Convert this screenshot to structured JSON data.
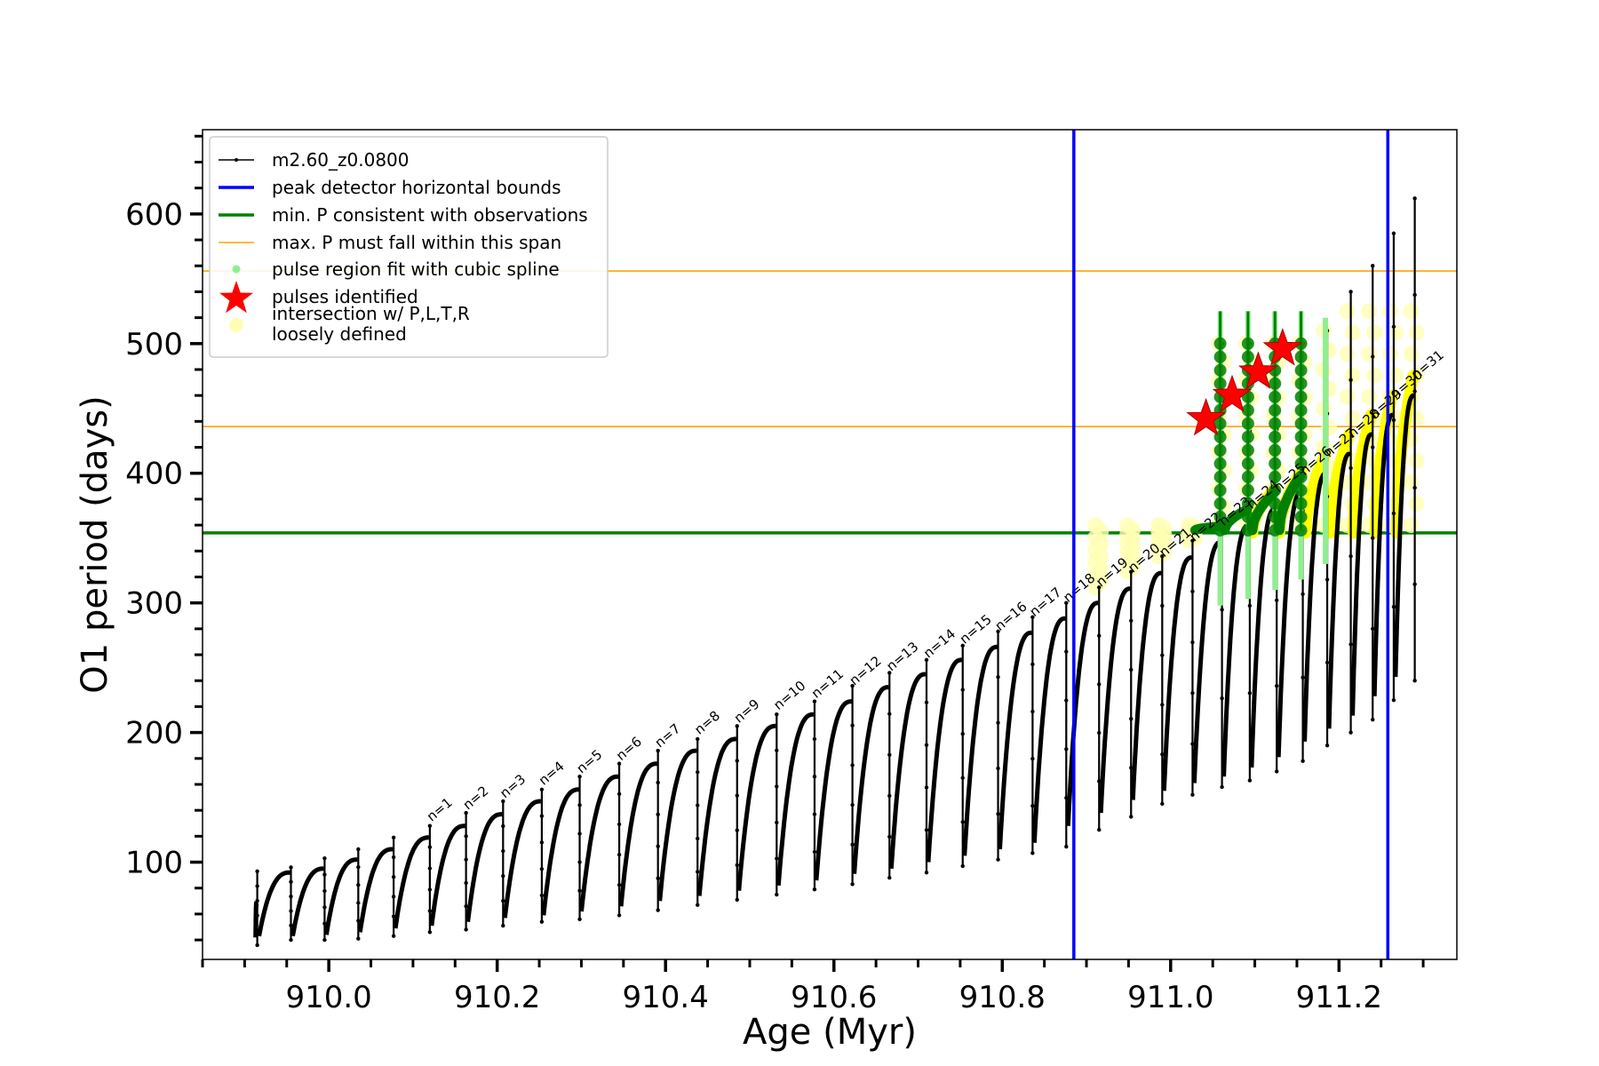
{
  "chart_data": {
    "type": "scatter",
    "xlabel": "Age (Myr)",
    "ylabel": "O1 period (days)",
    "xlim": [
      909.85,
      911.34
    ],
    "ylim": [
      25,
      665
    ],
    "xticks": [
      {
        "value": 910.0,
        "label": "910.0"
      },
      {
        "value": 910.2,
        "label": "910.2"
      },
      {
        "value": 910.4,
        "label": "910.4"
      },
      {
        "value": 910.6,
        "label": "910.6"
      },
      {
        "value": 910.8,
        "label": "910.8"
      },
      {
        "value": 911.0,
        "label": "911.0"
      },
      {
        "value": 911.2,
        "label": "911.2"
      }
    ],
    "yticks": [
      {
        "value": 100,
        "label": "100"
      },
      {
        "value": 200,
        "label": "200"
      },
      {
        "value": 300,
        "label": "300"
      },
      {
        "value": 400,
        "label": "400"
      },
      {
        "value": 500,
        "label": "500"
      },
      {
        "value": 600,
        "label": "600"
      }
    ],
    "legend": {
      "position": "upper-left",
      "entries": [
        {
          "label": "m2.60_z0.0800",
          "marker": "line-dot",
          "color": "#000000"
        },
        {
          "label": "peak detector horizontal bounds",
          "marker": "line",
          "color": "#0000ff"
        },
        {
          "label": "min. P consistent with observations",
          "marker": "line",
          "color": "#008000"
        },
        {
          "label": "max. P must fall within this span",
          "marker": "thin-line",
          "color": "#ffa500"
        },
        {
          "label": "pulse region fit with cubic spline",
          "marker": "dot",
          "color": "#90ee90"
        },
        {
          "label": "pulses identified",
          "marker": "star",
          "color": "#ff0000"
        },
        {
          "label": "intersection w/ P,L,T,R",
          "label2": "loosely defined",
          "marker": "circle",
          "color": "#ffffb3"
        }
      ]
    },
    "vlines": [
      {
        "x": 910.885,
        "color": "#0000ff"
      },
      {
        "x": 911.258,
        "color": "#0000ff"
      }
    ],
    "hlines": [
      {
        "y": 354,
        "color": "#008000"
      },
      {
        "y": 436,
        "color": "#ffa500"
      },
      {
        "y": 556,
        "color": "#ffa500"
      }
    ],
    "pulses": [
      {
        "n": 0,
        "x": 909.915,
        "min": 36,
        "max": 68,
        "peak": 93
      },
      {
        "n": 0,
        "x": 909.955,
        "min": 40,
        "max": 92,
        "peak": 96
      },
      {
        "n": 0,
        "x": 909.995,
        "min": 40,
        "max": 95,
        "peak": 103
      },
      {
        "n": 0,
        "x": 910.035,
        "min": 41,
        "max": 102,
        "peak": 110
      },
      {
        "n": 0,
        "x": 910.077,
        "min": 43,
        "max": 110,
        "peak": 119
      },
      {
        "n": 1,
        "x": 910.12,
        "min": 46,
        "max": 119,
        "peak": 128,
        "label": "n=1"
      },
      {
        "n": 2,
        "x": 910.163,
        "min": 48,
        "max": 128,
        "peak": 138,
        "label": "n=2"
      },
      {
        "n": 3,
        "x": 910.207,
        "min": 51,
        "max": 137,
        "peak": 147,
        "label": "n=3"
      },
      {
        "n": 4,
        "x": 910.253,
        "min": 54,
        "max": 147,
        "peak": 156,
        "label": "n=4"
      },
      {
        "n": 5,
        "x": 910.298,
        "min": 56,
        "max": 156,
        "peak": 166,
        "label": "n=5"
      },
      {
        "n": 6,
        "x": 910.345,
        "min": 59,
        "max": 166,
        "peak": 176,
        "label": "n=6"
      },
      {
        "n": 7,
        "x": 910.391,
        "min": 63,
        "max": 176,
        "peak": 186,
        "label": "n=7"
      },
      {
        "n": 8,
        "x": 910.438,
        "min": 67,
        "max": 186,
        "peak": 195,
        "label": "n=8"
      },
      {
        "n": 9,
        "x": 910.485,
        "min": 71,
        "max": 195,
        "peak": 205,
        "label": "n=9"
      },
      {
        "n": 10,
        "x": 910.532,
        "min": 75,
        "max": 205,
        "peak": 214,
        "label": "n=10"
      },
      {
        "n": 11,
        "x": 910.577,
        "min": 79,
        "max": 214,
        "peak": 224,
        "label": "n=11"
      },
      {
        "n": 12,
        "x": 910.622,
        "min": 83,
        "max": 224,
        "peak": 236,
        "label": "n=12"
      },
      {
        "n": 13,
        "x": 910.666,
        "min": 88,
        "max": 235,
        "peak": 246,
        "label": "n=13"
      },
      {
        "n": 14,
        "x": 910.71,
        "min": 92,
        "max": 245,
        "peak": 256,
        "label": "n=14"
      },
      {
        "n": 15,
        "x": 910.753,
        "min": 97,
        "max": 256,
        "peak": 267,
        "label": "n=15"
      },
      {
        "n": 16,
        "x": 910.795,
        "min": 102,
        "max": 266,
        "peak": 278,
        "label": "n=16"
      },
      {
        "n": 17,
        "x": 910.836,
        "min": 107,
        "max": 277,
        "peak": 289,
        "label": "n=17"
      },
      {
        "n": 18,
        "x": 910.876,
        "min": 112,
        "max": 288,
        "peak": 300,
        "label": "n=18"
      },
      {
        "n": 19,
        "x": 910.915,
        "min": 125,
        "max": 300,
        "peak": 312,
        "label": "n=19"
      },
      {
        "n": 20,
        "x": 910.953,
        "min": 135,
        "max": 311,
        "peak": 324,
        "label": "n=20"
      },
      {
        "n": 21,
        "x": 910.99,
        "min": 145,
        "max": 323,
        "peak": 336,
        "label": "n=21"
      },
      {
        "n": 22,
        "x": 911.026,
        "min": 152,
        "max": 335,
        "peak": 348,
        "label": "n=22"
      },
      {
        "n": 23,
        "x": 911.061,
        "min": 158,
        "max": 347,
        "peak": 500,
        "label": "n=23"
      },
      {
        "n": 24,
        "x": 911.094,
        "min": 163,
        "max": 360,
        "peak": 500,
        "label": "n=24"
      },
      {
        "n": 25,
        "x": 911.126,
        "min": 170,
        "max": 373,
        "peak": 500,
        "label": "n=25"
      },
      {
        "n": 26,
        "x": 911.157,
        "min": 178,
        "max": 386,
        "peak": 500,
        "label": "n=26"
      },
      {
        "n": 27,
        "x": 911.186,
        "min": 190,
        "max": 400,
        "peak": 510,
        "label": "n=27"
      },
      {
        "n": 28,
        "x": 911.214,
        "min": 200,
        "max": 415,
        "peak": 540,
        "label": "n=28"
      },
      {
        "n": 29,
        "x": 911.24,
        "min": 210,
        "max": 430,
        "peak": 560,
        "label": "n=29"
      },
      {
        "n": 30,
        "x": 911.265,
        "min": 225,
        "max": 445,
        "peak": 585,
        "label": "n=30"
      },
      {
        "n": 31,
        "x": 911.29,
        "min": 240,
        "max": 460,
        "peak": 612,
        "label": "n=31"
      }
    ],
    "stars": [
      {
        "x": 911.042,
        "y": 442
      },
      {
        "x": 911.073,
        "y": 460
      },
      {
        "x": 911.104,
        "y": 478
      },
      {
        "x": 911.133,
        "y": 496
      }
    ]
  }
}
